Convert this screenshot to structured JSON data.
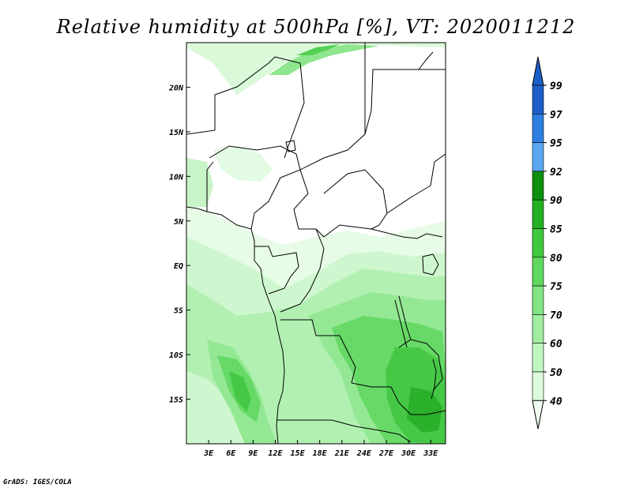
{
  "title": "Relative humidity at 500hPa [%], VT: 2020011212",
  "credit": "GrADS: IGES/COLA",
  "map": {
    "lon_range": [
      0,
      35
    ],
    "lat_range": [
      -20,
      25
    ],
    "lon_ticks": [
      {
        "value": 3,
        "label": "3E"
      },
      {
        "value": 6,
        "label": "6E"
      },
      {
        "value": 9,
        "label": "9E"
      },
      {
        "value": 12,
        "label": "12E"
      },
      {
        "value": 15,
        "label": "15E"
      },
      {
        "value": 18,
        "label": "18E"
      },
      {
        "value": 21,
        "label": "21E"
      },
      {
        "value": 24,
        "label": "24E"
      },
      {
        "value": 27,
        "label": "27E"
      },
      {
        "value": 30,
        "label": "30E"
      },
      {
        "value": 33,
        "label": "33E"
      }
    ],
    "lat_ticks": [
      {
        "value": 20,
        "label": "20N"
      },
      {
        "value": 15,
        "label": "15N"
      },
      {
        "value": 10,
        "label": "10N"
      },
      {
        "value": 5,
        "label": "5N"
      },
      {
        "value": 0,
        "label": "EQ"
      },
      {
        "value": -5,
        "label": "5S"
      },
      {
        "value": -10,
        "label": "10S"
      },
      {
        "value": -15,
        "label": "15S"
      }
    ]
  },
  "colorbar": {
    "levels": [
      {
        "label": "40",
        "color": "#f0fef0"
      },
      {
        "label": "50",
        "color": "#dcfadc"
      },
      {
        "label": "60",
        "color": "#c0f5c0"
      },
      {
        "label": "70",
        "color": "#a0eda0"
      },
      {
        "label": "75",
        "color": "#82e482"
      },
      {
        "label": "80",
        "color": "#5fd85f"
      },
      {
        "label": "85",
        "color": "#3ec83e"
      },
      {
        "label": "90",
        "color": "#22b022"
      },
      {
        "label": "92",
        "color": "#0d900d"
      },
      {
        "label": "95",
        "color": "#5aa6f0"
      },
      {
        "label": "97",
        "color": "#2f7fe0"
      },
      {
        "label": "99",
        "color": "#1c5fc8"
      }
    ],
    "top_color": "#1c5fc8"
  }
}
